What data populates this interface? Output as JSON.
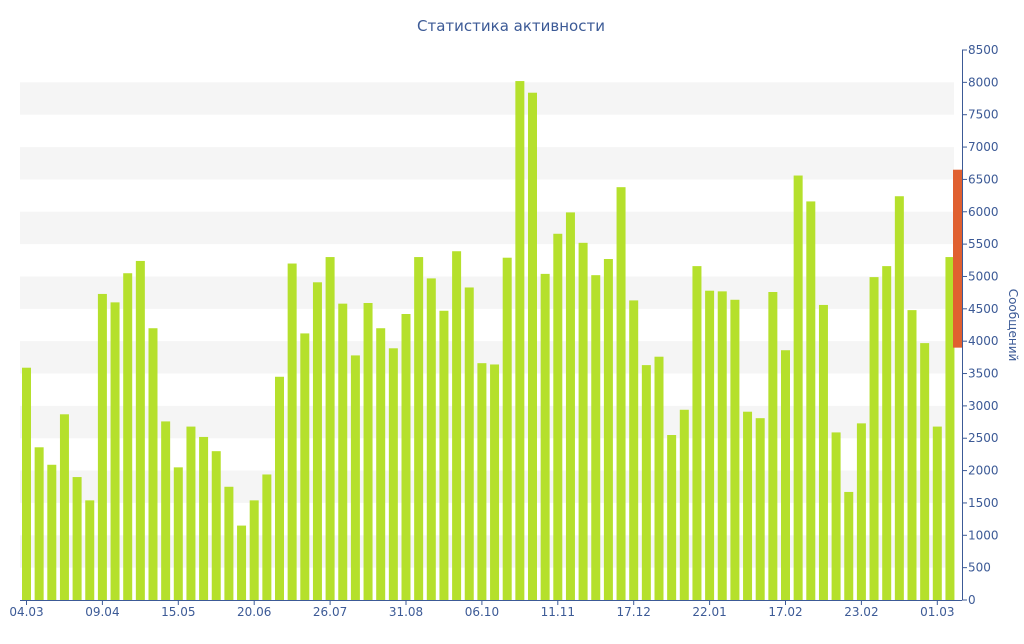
{
  "chart_data": {
    "type": "bar",
    "title": "Статистика активности",
    "ylabel": "Сообщений",
    "ylim": [
      0,
      8500
    ],
    "yticks": [
      0,
      500,
      1000,
      1500,
      2000,
      2500,
      3000,
      3500,
      4000,
      4500,
      5000,
      5500,
      6000,
      6500,
      7000,
      7500,
      8000,
      8500
    ],
    "x_tick_labels": [
      {
        "index": 0,
        "label": "04.03"
      },
      {
        "index": 6,
        "label": "09.04"
      },
      {
        "index": 12,
        "label": "15.05"
      },
      {
        "index": 18,
        "label": "20.06"
      },
      {
        "index": 24,
        "label": "26.07"
      },
      {
        "index": 30,
        "label": "31.08"
      },
      {
        "index": 36,
        "label": "06.10"
      },
      {
        "index": 42,
        "label": "11.11"
      },
      {
        "index": 48,
        "label": "17.12"
      },
      {
        "index": 54,
        "label": "22.01"
      },
      {
        "index": 60,
        "label": "17.02"
      },
      {
        "index": 66,
        "label": "23.02"
      },
      {
        "index": 72,
        "label": "01.03"
      }
    ],
    "values": [
      3590,
      2360,
      2090,
      2870,
      1900,
      1540,
      4730,
      4600,
      5050,
      5240,
      4200,
      2760,
      2050,
      2680,
      2520,
      2300,
      1750,
      1150,
      1540,
      1940,
      3450,
      5200,
      4120,
      4910,
      5300,
      4580,
      3780,
      4590,
      4200,
      3890,
      4420,
      5300,
      4970,
      4470,
      5390,
      4830,
      3660,
      3640,
      5290,
      8020,
      7840,
      5040,
      5660,
      5990,
      5520,
      5020,
      5270,
      6380,
      4630,
      3630,
      3760,
      2550,
      2940,
      5160,
      4780,
      4770,
      4640,
      2910,
      2810,
      4760,
      3860,
      6560,
      6160,
      4560,
      2590,
      1670,
      2730,
      4990,
      5160,
      6240,
      4480,
      3970,
      2680,
      5300
    ],
    "colors": {
      "bar": "#b5e02c",
      "current_marker": "#e06030",
      "text": "#3c5a96",
      "band": "#f5f5f5",
      "axis": "#3c5a96"
    },
    "current_range": [
      3900,
      6650
    ],
    "grid": "alternating-bands",
    "y_axis_position": "right"
  }
}
